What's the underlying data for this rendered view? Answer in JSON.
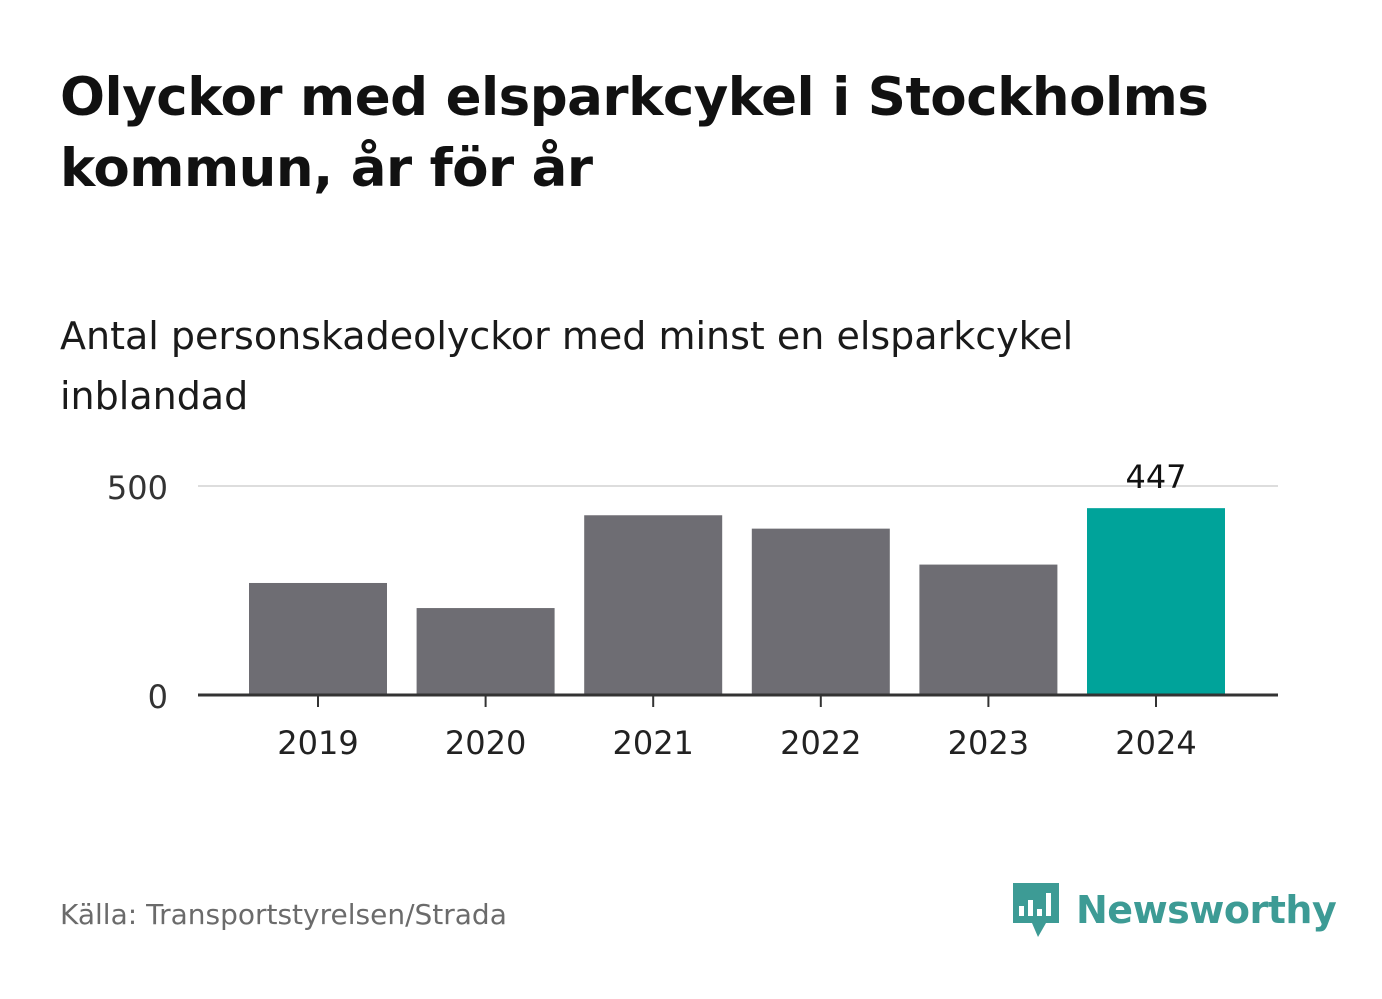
{
  "title": "Olyckor med elsparkcykel i Stockholms kommun, år för år",
  "subtitle": "Antal personskadeolyckor med minst en elsparkcykel inblandad",
  "source": "Källa: Transportstyrelsen/Strada",
  "brand": "Newsworthy",
  "colors": {
    "bar": "#6e6d73",
    "highlight": "#00a39a",
    "brand": "#3d9b95",
    "grid": "#dddddd",
    "axis": "#333333"
  },
  "chart_data": {
    "type": "bar",
    "categories": [
      "2019",
      "2020",
      "2021",
      "2022",
      "2023",
      "2024"
    ],
    "values": [
      268,
      208,
      430,
      398,
      312,
      447
    ],
    "highlight_index": 5,
    "data_labels": [
      {
        "index": 5,
        "text": "447"
      }
    ],
    "ylim": [
      0,
      500
    ],
    "yticks": [
      0,
      500
    ],
    "grid": true,
    "xlabel": "",
    "ylabel": ""
  }
}
